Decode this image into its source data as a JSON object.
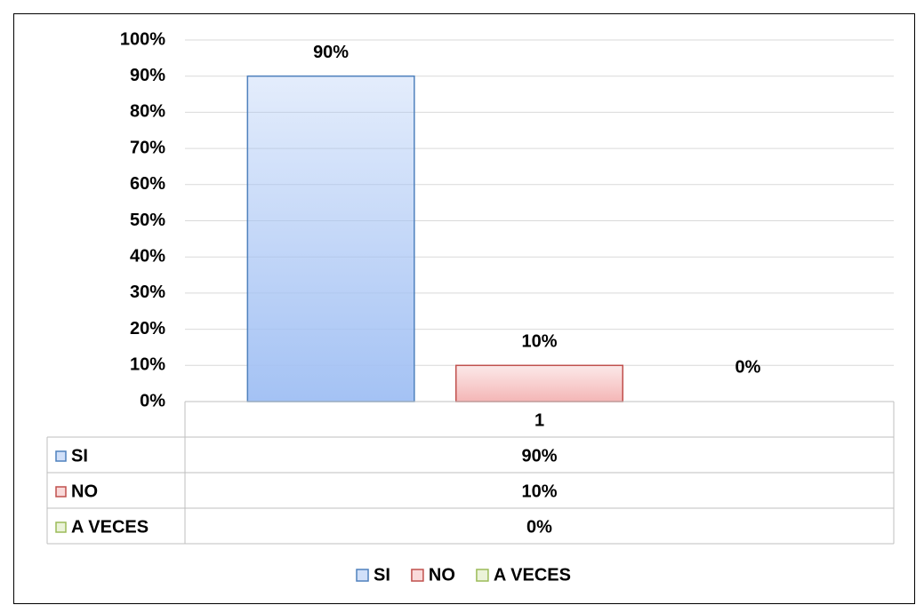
{
  "chart_data": {
    "type": "bar",
    "categories": [
      "1"
    ],
    "series": [
      {
        "name": "SI",
        "color": "#a4c2f4",
        "border_color": "#4f81bd",
        "values": [
          90
        ],
        "value_labels": [
          "90%"
        ]
      },
      {
        "name": "NO",
        "color": "#f4b6b6",
        "border_color": "#c0504d",
        "values": [
          10
        ],
        "value_labels": [
          "10%"
        ]
      },
      {
        "name": "A VECES",
        "color": "#d7e8b4",
        "border_color": "#9bbb59",
        "values": [
          0
        ],
        "value_labels": [
          "0%"
        ]
      }
    ],
    "ylim": [
      0,
      100
    ],
    "yticks": [
      {
        "value": 0,
        "label": "0%"
      },
      {
        "value": 10,
        "label": "10%"
      },
      {
        "value": 20,
        "label": "20%"
      },
      {
        "value": 30,
        "label": "30%"
      },
      {
        "value": 40,
        "label": "40%"
      },
      {
        "value": 50,
        "label": "50%"
      },
      {
        "value": 60,
        "label": "60%"
      },
      {
        "value": 70,
        "label": "70%"
      },
      {
        "value": 80,
        "label": "80%"
      },
      {
        "value": 90,
        "label": "90%"
      },
      {
        "value": 100,
        "label": "100%"
      }
    ],
    "grid": true,
    "data_table": true,
    "legend": "bottom"
  }
}
